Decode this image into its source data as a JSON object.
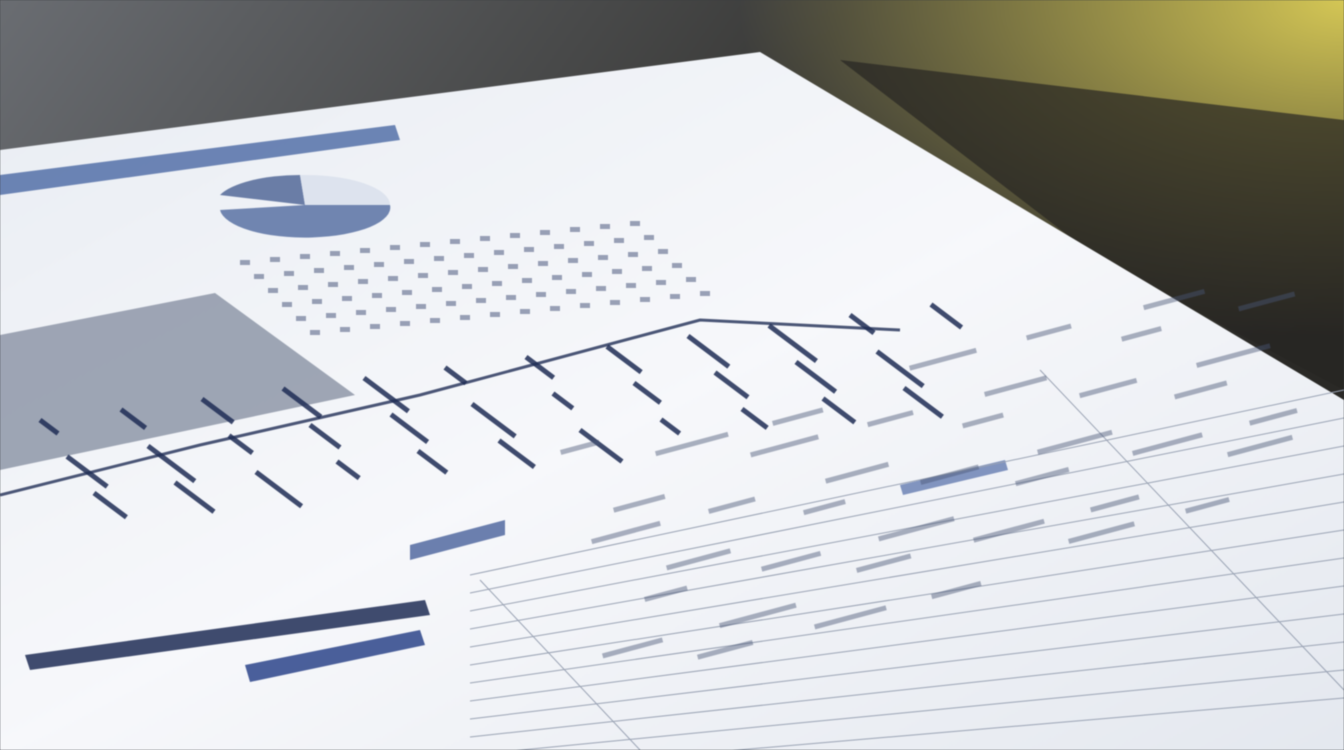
{
  "scene": {
    "description_type": "photo-of-printed-report",
    "colors": {
      "background_dark": "#2e3034",
      "background_glow": "#d8c85a",
      "paper": "#f4f6f9",
      "accent_blue": "#3f5f9e",
      "navy": "#1f2d55",
      "chart_gray": "#8e96a8"
    }
  }
}
